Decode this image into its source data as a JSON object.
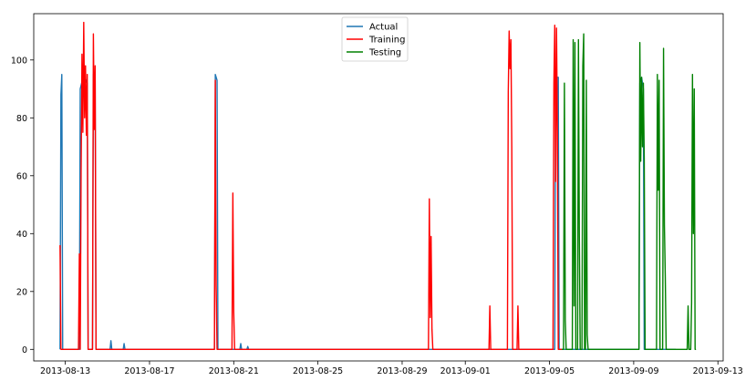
{
  "chart_data": {
    "type": "line",
    "title": "",
    "xlabel": "",
    "ylabel": "",
    "grid": false,
    "legend_position": "top-center",
    "x_type": "datetime",
    "xlim": [
      "2013-08-11T12:00",
      "2013-09-13T06:00"
    ],
    "ylim": [
      -4,
      116
    ],
    "x_ticks": [
      "2013-08-13",
      "2013-08-17",
      "2013-08-21",
      "2013-08-25",
      "2013-08-29",
      "2013-09-01",
      "2013-09-05",
      "2013-09-09",
      "2013-09-13"
    ],
    "y_ticks": [
      0,
      20,
      40,
      60,
      80,
      100
    ],
    "series": [
      {
        "name": "Actual",
        "color": "#1f77b4",
        "points": [
          [
            "2013-08-12T18:00",
            0
          ],
          [
            "2013-08-12T19:00",
            88
          ],
          [
            "2013-08-12T20:00",
            95
          ],
          [
            "2013-08-12T21:00",
            0
          ],
          [
            "2013-08-13T16:00",
            0
          ],
          [
            "2013-08-13T17:00",
            90
          ],
          [
            "2013-08-13T21:00",
            95
          ],
          [
            "2013-08-14T01:00",
            92
          ],
          [
            "2013-08-14T02:00",
            0
          ],
          [
            "2013-08-14T07:00",
            0
          ],
          [
            "2013-08-14T08:00",
            95
          ],
          [
            "2013-08-14T10:00",
            93
          ],
          [
            "2013-08-14T11:00",
            0
          ],
          [
            "2013-08-15T03:00",
            0
          ],
          [
            "2013-08-15T04:00",
            3
          ],
          [
            "2013-08-15T05:00",
            0
          ],
          [
            "2013-08-15T18:00",
            0
          ],
          [
            "2013-08-15T19:00",
            2
          ],
          [
            "2013-08-15T20:00",
            0
          ],
          [
            "2013-08-20T02:00",
            0
          ],
          [
            "2013-08-20T03:00",
            95
          ],
          [
            "2013-08-20T05:00",
            93
          ],
          [
            "2013-08-20T06:00",
            0
          ],
          [
            "2013-08-20T08:00",
            0
          ],
          [
            "2013-08-21T07:00",
            0
          ],
          [
            "2013-08-21T08:00",
            2
          ],
          [
            "2013-08-21T09:00",
            0
          ],
          [
            "2013-08-21T15:00",
            0
          ],
          [
            "2013-08-21T16:00",
            1
          ],
          [
            "2013-08-21T17:00",
            0
          ],
          [
            "2013-09-05T06:00",
            0
          ],
          [
            "2013-09-05T07:00",
            94
          ],
          [
            "2013-09-05T10:00",
            94
          ],
          [
            "2013-09-05T11:00",
            0
          ],
          [
            "2013-09-09T06:00",
            0
          ],
          [
            "2013-09-09T07:00",
            92
          ],
          [
            "2013-09-09T09:00",
            94
          ],
          [
            "2013-09-09T11:00",
            90
          ],
          [
            "2013-09-09T12:00",
            0
          ],
          [
            "2013-09-11T00:00",
            0
          ]
        ]
      },
      {
        "name": "Training",
        "color": "#ff0000",
        "points": [
          [
            "2013-08-12T18:00",
            36
          ],
          [
            "2013-08-12T19:00",
            0
          ],
          [
            "2013-08-13T15:00",
            0
          ],
          [
            "2013-08-13T16:00",
            33
          ],
          [
            "2013-08-13T17:00",
            0
          ],
          [
            "2013-08-13T18:00",
            61
          ],
          [
            "2013-08-13T19:00",
            102
          ],
          [
            "2013-08-13T20:00",
            75
          ],
          [
            "2013-08-13T21:00",
            113
          ],
          [
            "2013-08-13T22:00",
            80
          ],
          [
            "2013-08-13T23:00",
            98
          ],
          [
            "2013-08-14T00:00",
            74
          ],
          [
            "2013-08-14T01:00",
            95
          ],
          [
            "2013-08-14T02:00",
            0
          ],
          [
            "2013-08-14T07:00",
            0
          ],
          [
            "2013-08-14T08:00",
            109
          ],
          [
            "2013-08-14T09:00",
            76
          ],
          [
            "2013-08-14T10:00",
            98
          ],
          [
            "2013-08-14T11:00",
            0
          ],
          [
            "2013-08-20T02:00",
            0
          ],
          [
            "2013-08-20T03:00",
            93
          ],
          [
            "2013-08-20T04:00",
            22
          ],
          [
            "2013-08-20T05:00",
            0
          ],
          [
            "2013-08-20T22:00",
            0
          ],
          [
            "2013-08-20T23:00",
            54
          ],
          [
            "2013-08-21T00:00",
            13
          ],
          [
            "2013-08-21T01:00",
            0
          ],
          [
            "2013-08-30T06:00",
            0
          ],
          [
            "2013-08-30T07:00",
            52
          ],
          [
            "2013-08-30T08:00",
            11
          ],
          [
            "2013-08-30T09:00",
            39
          ],
          [
            "2013-08-30T10:00",
            7
          ],
          [
            "2013-08-30T11:00",
            0
          ],
          [
            "2013-09-02T03:00",
            0
          ],
          [
            "2013-09-02T04:00",
            15
          ],
          [
            "2013-09-02T05:00",
            0
          ],
          [
            "2013-09-03T00:00",
            0
          ],
          [
            "2013-09-03T01:00",
            89
          ],
          [
            "2013-09-03T02:00",
            110
          ],
          [
            "2013-09-03T03:00",
            97
          ],
          [
            "2013-09-03T04:00",
            107
          ],
          [
            "2013-09-03T05:00",
            70
          ],
          [
            "2013-09-03T06:00",
            0
          ],
          [
            "2013-09-03T11:00",
            0
          ],
          [
            "2013-09-03T12:00",
            15
          ],
          [
            "2013-09-03T13:00",
            0
          ],
          [
            "2013-09-05T04:00",
            0
          ],
          [
            "2013-09-05T05:00",
            92
          ],
          [
            "2013-09-05T06:00",
            112
          ],
          [
            "2013-09-05T07:00",
            58
          ],
          [
            "2013-09-05T08:00",
            111
          ],
          [
            "2013-09-05T09:00",
            75
          ],
          [
            "2013-09-05T10:00",
            0
          ],
          [
            "2013-09-05T14:00",
            0
          ]
        ]
      },
      {
        "name": "Testing",
        "color": "#008000",
        "points": [
          [
            "2013-09-05T14:00",
            0
          ],
          [
            "2013-09-05T16:00",
            0
          ],
          [
            "2013-09-05T17:00",
            92
          ],
          [
            "2013-09-05T18:00",
            10
          ],
          [
            "2013-09-05T19:00",
            0
          ],
          [
            "2013-09-06T02:00",
            0
          ],
          [
            "2013-09-06T03:00",
            107
          ],
          [
            "2013-09-06T04:00",
            15
          ],
          [
            "2013-09-06T05:00",
            106
          ],
          [
            "2013-09-06T06:00",
            0
          ],
          [
            "2013-09-06T08:00",
            0
          ],
          [
            "2013-09-06T09:00",
            107
          ],
          [
            "2013-09-06T10:00",
            40
          ],
          [
            "2013-09-06T11:00",
            0
          ],
          [
            "2013-09-06T13:00",
            0
          ],
          [
            "2013-09-06T14:00",
            98
          ],
          [
            "2013-09-06T15:00",
            109
          ],
          [
            "2013-09-06T16:00",
            0
          ],
          [
            "2013-09-06T17:00",
            0
          ],
          [
            "2013-09-06T18:00",
            93
          ],
          [
            "2013-09-06T19:00",
            5
          ],
          [
            "2013-09-06T20:00",
            0
          ],
          [
            "2013-09-09T06:00",
            0
          ],
          [
            "2013-09-09T07:00",
            106
          ],
          [
            "2013-09-09T08:00",
            65
          ],
          [
            "2013-09-09T09:00",
            94
          ],
          [
            "2013-09-09T10:00",
            70
          ],
          [
            "2013-09-09T11:00",
            92
          ],
          [
            "2013-09-09T12:00",
            66
          ],
          [
            "2013-09-09T13:00",
            0
          ],
          [
            "2013-09-10T02:00",
            0
          ],
          [
            "2013-09-10T03:00",
            95
          ],
          [
            "2013-09-10T04:00",
            55
          ],
          [
            "2013-09-10T05:00",
            93
          ],
          [
            "2013-09-10T06:00",
            0
          ],
          [
            "2013-09-10T09:00",
            0
          ],
          [
            "2013-09-10T10:00",
            104
          ],
          [
            "2013-09-10T11:00",
            43
          ],
          [
            "2013-09-10T12:00",
            25
          ],
          [
            "2013-09-10T13:00",
            0
          ],
          [
            "2013-09-11T13:00",
            0
          ],
          [
            "2013-09-11T14:00",
            15
          ],
          [
            "2013-09-11T15:00",
            0
          ],
          [
            "2013-09-11T17:00",
            0
          ],
          [
            "2013-09-11T18:00",
            16
          ],
          [
            "2013-09-11T19:00",
            95
          ],
          [
            "2013-09-11T20:00",
            40
          ],
          [
            "2013-09-11T21:00",
            90
          ],
          [
            "2013-09-11T22:00",
            0
          ],
          [
            "2013-09-11T23:00",
            0
          ]
        ]
      }
    ]
  }
}
